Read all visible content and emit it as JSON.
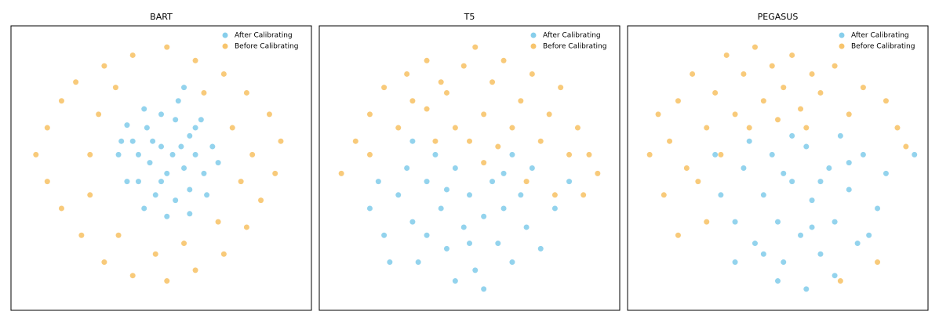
{
  "chart_data": [
    {
      "type": "scatter",
      "title": "BART",
      "xlim": [
        0,
        100
      ],
      "ylim": [
        0,
        100
      ],
      "legend": "upper right",
      "series": [
        {
          "name": "After Calibrating",
          "color": "#87ceeb",
          "x": [
            40,
            45,
            50,
            55,
            60,
            62,
            58,
            52,
            46,
            42,
            48,
            55,
            60,
            65,
            68,
            64,
            56,
            44,
            38,
            35,
            38,
            44,
            52,
            60,
            66,
            70,
            50,
            54,
            47,
            57,
            42,
            50,
            62,
            36,
            58
          ],
          "y": [
            60,
            65,
            70,
            68,
            62,
            55,
            50,
            48,
            52,
            45,
            40,
            38,
            42,
            48,
            58,
            68,
            75,
            72,
            66,
            55,
            45,
            35,
            32,
            33,
            40,
            52,
            58,
            55,
            60,
            58,
            55,
            45,
            65,
            60,
            80
          ]
        },
        {
          "name": "Before Calibrating",
          "color": "#f7c46c",
          "x": [
            10,
            15,
            20,
            30,
            40,
            52,
            62,
            72,
            80,
            88,
            92,
            90,
            85,
            80,
            72,
            62,
            52,
            40,
            30,
            22,
            15,
            10,
            6,
            25,
            28,
            75,
            78,
            70,
            35,
            25,
            82,
            65,
            34,
            48,
            58
          ],
          "y": [
            65,
            75,
            82,
            88,
            92,
            95,
            90,
            85,
            78,
            70,
            60,
            48,
            38,
            28,
            18,
            12,
            8,
            10,
            15,
            25,
            35,
            45,
            55,
            55,
            70,
            65,
            45,
            30,
            25,
            40,
            55,
            78,
            80,
            18,
            22
          ]
        }
      ]
    },
    {
      "type": "scatter",
      "title": "T5",
      "xlim": [
        0,
        100
      ],
      "ylim": [
        0,
        100
      ],
      "legend": "upper right",
      "series": [
        {
          "name": "After Calibrating",
          "color": "#87ceeb",
          "x": [
            15,
            20,
            25,
            30,
            32,
            35,
            40,
            42,
            45,
            48,
            50,
            52,
            55,
            58,
            60,
            62,
            65,
            68,
            70,
            72,
            75,
            38,
            28,
            45,
            55,
            80,
            22,
            35,
            50,
            62,
            42,
            30,
            85,
            18,
            65
          ],
          "y": [
            35,
            25,
            40,
            30,
            15,
            45,
            35,
            20,
            50,
            28,
            40,
            12,
            32,
            45,
            22,
            35,
            15,
            40,
            28,
            50,
            20,
            55,
            50,
            8,
            5,
            35,
            15,
            25,
            22,
            48,
            42,
            60,
            45,
            45,
            55
          ]
        },
        {
          "name": "Before Calibrating",
          "color": "#f7c46c",
          "x": [
            5,
            10,
            15,
            20,
            28,
            35,
            42,
            48,
            52,
            58,
            62,
            68,
            72,
            78,
            82,
            88,
            92,
            95,
            85,
            75,
            65,
            55,
            45,
            35,
            25,
            15,
            50,
            60,
            40,
            30,
            70,
            80,
            90,
            38,
            55
          ],
          "y": [
            48,
            60,
            70,
            80,
            85,
            90,
            78,
            88,
            95,
            82,
            90,
            75,
            85,
            70,
            80,
            65,
            55,
            48,
            55,
            60,
            65,
            70,
            65,
            72,
            65,
            55,
            60,
            58,
            82,
            75,
            45,
            40,
            40,
            60,
            52
          ]
        }
      ]
    },
    {
      "type": "scatter",
      "title": "PEGASUS",
      "xlim": [
        0,
        100
      ],
      "ylim": [
        0,
        100
      ],
      "legend": "upper right",
      "series": [
        {
          "name": "After Calibrating",
          "color": "#87ceeb",
          "x": [
            30,
            35,
            38,
            42,
            45,
            48,
            50,
            52,
            55,
            58,
            60,
            62,
            65,
            68,
            70,
            72,
            75,
            78,
            80,
            85,
            88,
            40,
            50,
            60,
            70,
            45,
            55,
            65,
            75,
            82,
            98,
            28,
            35,
            62,
            52
          ],
          "y": [
            40,
            30,
            50,
            22,
            40,
            55,
            30,
            15,
            45,
            25,
            58,
            38,
            18,
            50,
            30,
            62,
            42,
            22,
            55,
            35,
            48,
            60,
            8,
            5,
            10,
            18,
            62,
            45,
            52,
            25,
            55,
            55,
            15,
            28,
            48
          ]
        },
        {
          "name": "Before Calibrating",
          "color": "#f7c46c",
          "x": [
            5,
            8,
            12,
            15,
            18,
            20,
            25,
            28,
            32,
            35,
            38,
            42,
            45,
            48,
            52,
            55,
            58,
            62,
            65,
            70,
            75,
            80,
            88,
            92,
            95,
            22,
            30,
            40,
            50,
            60,
            10,
            15,
            25,
            85,
            72
          ],
          "y": [
            55,
            70,
            60,
            75,
            50,
            85,
            65,
            78,
            92,
            70,
            85,
            95,
            75,
            88,
            80,
            92,
            72,
            85,
            78,
            88,
            70,
            80,
            75,
            65,
            58,
            45,
            55,
            65,
            68,
            65,
            40,
            25,
            30,
            15,
            8
          ]
        }
      ]
    }
  ]
}
